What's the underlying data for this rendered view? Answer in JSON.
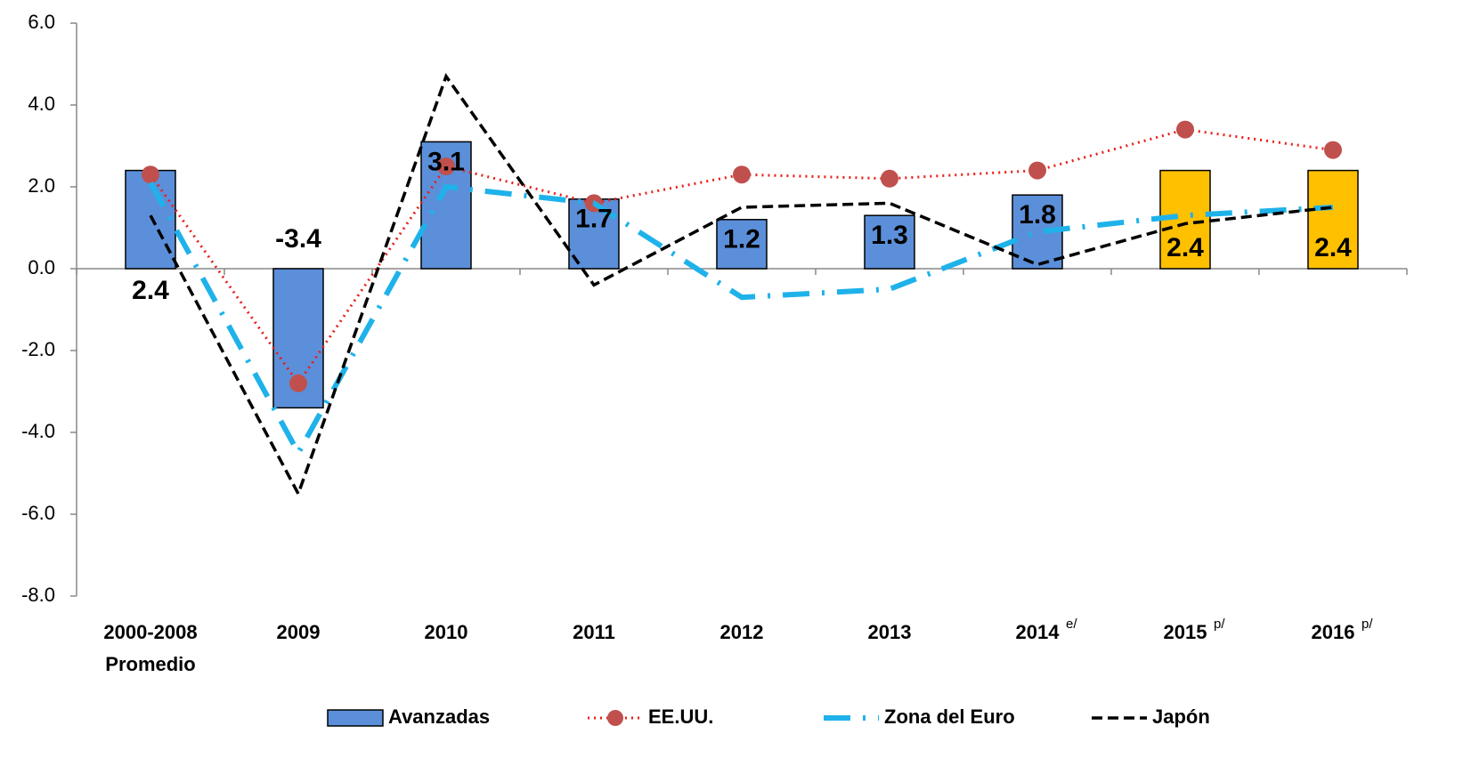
{
  "chart_data": {
    "type": "bar",
    "categories": [
      "2000-2008",
      "2009",
      "2010",
      "2011",
      "2012",
      "2013",
      "2014",
      "2015",
      "2016"
    ],
    "category_subtitles": [
      "Promedio",
      null,
      null,
      null,
      null,
      null,
      null,
      null,
      null
    ],
    "category_notes": [
      null,
      null,
      null,
      null,
      null,
      null,
      "e/",
      "p/",
      "p/"
    ],
    "series": [
      {
        "name": "Avanzadas",
        "type": "bar",
        "values": [
          2.4,
          -3.4,
          3.1,
          1.7,
          1.2,
          1.3,
          1.8,
          2.4,
          2.4
        ],
        "colors": [
          "#5b8fd9",
          "#5b8fd9",
          "#5b8fd9",
          "#5b8fd9",
          "#5b8fd9",
          "#5b8fd9",
          "#5b8fd9",
          "#ffc000",
          "#ffc000"
        ],
        "color": "#5b8fd9"
      },
      {
        "name": "EE.UU.",
        "type": "line",
        "style": "dotted-markers",
        "color": "#e8201a",
        "marker_color": "#c0504d",
        "values": [
          2.3,
          -2.8,
          2.5,
          1.6,
          2.3,
          2.2,
          2.4,
          3.4,
          2.9
        ]
      },
      {
        "name": "Zona del Euro",
        "type": "line",
        "style": "dash-dot",
        "color": "#1fb2ea",
        "values": [
          2.1,
          -4.5,
          2.0,
          1.6,
          -0.7,
          -0.5,
          0.9,
          1.3,
          1.5
        ]
      },
      {
        "name": "Japón",
        "type": "line",
        "style": "dashed",
        "color": "#000000",
        "values": [
          1.3,
          -5.5,
          4.7,
          -0.4,
          1.5,
          1.6,
          0.1,
          1.1,
          1.5
        ]
      }
    ],
    "ylim": [
      -8,
      6
    ],
    "yticks": [
      {
        "value": -8,
        "label": "-8.0"
      },
      {
        "value": -6,
        "label": "-6.0"
      },
      {
        "value": -4,
        "label": "-4.0"
      },
      {
        "value": -2,
        "label": "-2.0"
      },
      {
        "value": 0,
        "label": "0.0"
      },
      {
        "value": 2,
        "label": "2.0"
      },
      {
        "value": 4,
        "label": "4.0"
      },
      {
        "value": 6,
        "label": "6.0"
      }
    ],
    "grid": false,
    "legend": "bottom"
  }
}
